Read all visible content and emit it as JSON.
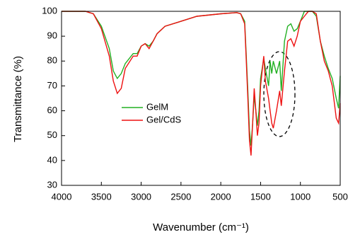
{
  "chart_data": {
    "type": "line",
    "x_label": "Wavenumber (cm⁻¹)",
    "y_label": "Transmittance (%)",
    "x": [
      4000,
      3700,
      3600,
      3500,
      3400,
      3350,
      3300,
      3250,
      3200,
      3100,
      3050,
      3000,
      2950,
      2900,
      2850,
      2800,
      2700,
      2500,
      2300,
      2000,
      1800,
      1750,
      1700,
      1680,
      1660,
      1640,
      1620,
      1600,
      1580,
      1560,
      1540,
      1520,
      1500,
      1460,
      1440,
      1400,
      1380,
      1360,
      1340,
      1300,
      1260,
      1240,
      1200,
      1160,
      1120,
      1080,
      1040,
      1000,
      950,
      900,
      850,
      800,
      750,
      700,
      650,
      600,
      550,
      520,
      500
    ],
    "series": [
      {
        "name": "GelM",
        "color": "#22b022",
        "values": [
          100,
          100,
          99,
          94,
          85,
          76,
          73,
          75,
          79,
          83,
          83,
          86,
          87,
          86,
          88,
          91,
          94,
          96,
          98,
          99,
          99.5,
          99,
          96,
          82,
          68,
          52,
          46,
          55,
          66,
          60,
          54,
          60,
          73,
          81,
          77,
          70,
          80,
          75,
          80,
          75,
          80,
          68,
          88,
          94,
          95,
          92,
          93,
          96,
          100,
          100,
          100,
          98,
          88,
          82,
          77,
          73,
          65,
          61,
          74
        ]
      },
      {
        "name": "Gel/CdS",
        "color": "#ee1111",
        "values": [
          100,
          100,
          99,
          93,
          82,
          72,
          67,
          69,
          77,
          82,
          82,
          86,
          87,
          85,
          88,
          91,
          94,
          96,
          98,
          99,
          99.5,
          99,
          95,
          80,
          65,
          48,
          42,
          55,
          69,
          60,
          50,
          55,
          70,
          82,
          72,
          65,
          60,
          55,
          53,
          60,
          68,
          62,
          76,
          88,
          89,
          86,
          90,
          96,
          98,
          100,
          100,
          99,
          88,
          80,
          76,
          70,
          57,
          55,
          63
        ]
      }
    ],
    "xlim": [
      4000,
      500
    ],
    "ylim": [
      30,
      100
    ],
    "xticks": [
      4000,
      3500,
      3000,
      2500,
      2000,
      1500,
      1000,
      500
    ],
    "yticks": [
      30,
      40,
      50,
      60,
      70,
      80,
      90,
      100
    ],
    "legend": "center-left"
  }
}
